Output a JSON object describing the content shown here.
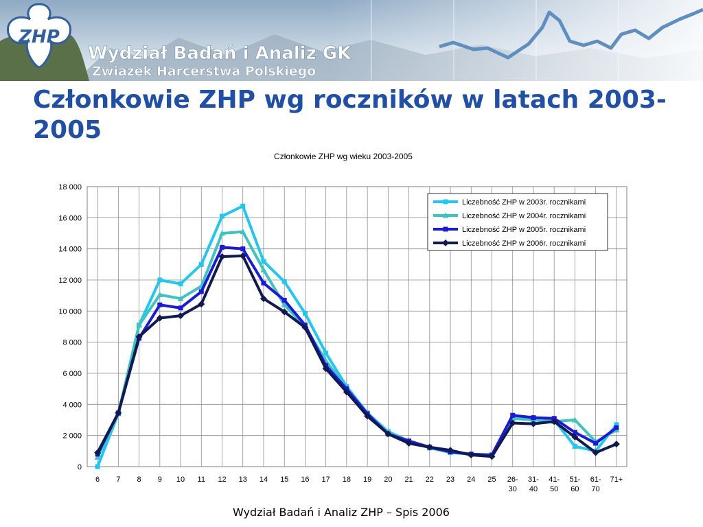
{
  "banner": {
    "logo_text": "ZHP",
    "line1": "Wydział Badań i Analiz GK",
    "line2": "Związek Harcerstwa Polskiego"
  },
  "slide_title": "Członkowie ZHP wg roczników w latach 2003-2005",
  "footer": "Wydział Badań i Analiz ZHP – Spis 2006",
  "colors": {
    "title": "#1f4fa8",
    "series": [
      "#1ec8f0",
      "#3cc4c0",
      "#1a1adc",
      "#101a50"
    ]
  },
  "chart_data": {
    "type": "line",
    "title": "Członkowie ZHP wg wieku 2003-2005",
    "xlabel": "",
    "ylabel": "",
    "ylim": [
      0,
      18000
    ],
    "yticks": [
      0,
      2000,
      4000,
      6000,
      8000,
      10000,
      12000,
      14000,
      16000,
      18000
    ],
    "ytick_labels": [
      "0",
      "2 000",
      "4 000",
      "6 000",
      "8 000",
      "10 000",
      "12 000",
      "14 000",
      "16 000",
      "18 000"
    ],
    "categories": [
      "6",
      "7",
      "8",
      "9",
      "10",
      "11",
      "12",
      "13",
      "14",
      "15",
      "16",
      "17",
      "18",
      "19",
      "20",
      "21",
      "22",
      "23",
      "24",
      "25",
      "26-30",
      "31-40",
      "41-50",
      "51-60",
      "61-70",
      "71+"
    ],
    "grid": "vertical lines at categories, horizontal lines at y ticks",
    "legend_position": "top-right",
    "series": [
      {
        "name": "Liczebność ZHP w 2003r. rocznikami",
        "marker": "square",
        "values": [
          0,
          3400,
          9100,
          12000,
          11750,
          13000,
          16100,
          16750,
          13200,
          11900,
          9850,
          7300,
          5150,
          3450,
          2250,
          1650,
          1200,
          900,
          800,
          750,
          3100,
          3050,
          3000,
          1300,
          1000,
          2700
        ]
      },
      {
        "name": "Liczebność ZHP w 2004r. rocznikami",
        "marker": "triangle",
        "values": [
          600,
          3400,
          9100,
          11050,
          10800,
          11600,
          15000,
          15100,
          12650,
          10400,
          9000,
          6800,
          5050,
          3400,
          2200,
          1650,
          1200,
          950,
          800,
          750,
          3100,
          3000,
          2900,
          3000,
          1600,
          2350
        ]
      },
      {
        "name": "Liczebność ZHP w 2005r. rocznikami",
        "marker": "square",
        "values": [
          800,
          3450,
          8250,
          10400,
          10200,
          11250,
          14100,
          14000,
          11800,
          10700,
          9100,
          6500,
          5000,
          3400,
          2100,
          1650,
          1250,
          950,
          800,
          750,
          3300,
          3150,
          3100,
          2200,
          1500,
          2500
        ]
      },
      {
        "name": "Liczebność ZHP w 2006r. rocznikami",
        "marker": "diamond",
        "values": [
          900,
          3450,
          8350,
          9550,
          9700,
          10450,
          13500,
          13550,
          10800,
          9950,
          8950,
          6300,
          4800,
          3250,
          2100,
          1500,
          1250,
          1050,
          750,
          650,
          2800,
          2750,
          2900,
          1900,
          900,
          1450
        ]
      }
    ]
  }
}
